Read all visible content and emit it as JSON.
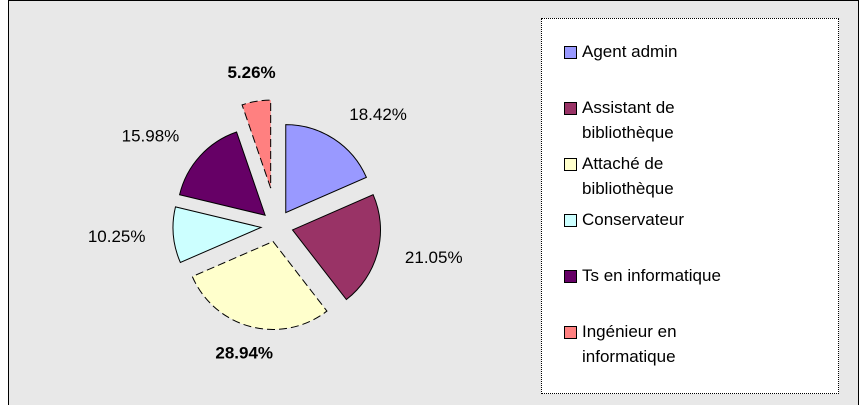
{
  "chart_data": {
    "type": "pie",
    "categories": [
      "Agent admin",
      "Assistant de bibliothèque",
      "Attaché de bibliothèque",
      "Conservateur",
      "Ts en informatique",
      "Ingénieur en informatique"
    ],
    "values": [
      18.42,
      21.05,
      28.94,
      10.25,
      15.98,
      5.26
    ],
    "value_labels": [
      "18.42%",
      "21.05%",
      "28.94%",
      "10.25%",
      "15.98%",
      "5.26%"
    ],
    "colors": [
      "#9999ff",
      "#993366",
      "#ffffcc",
      "#ccffff",
      "#660066",
      "#ff8080"
    ],
    "legend": "right"
  }
}
